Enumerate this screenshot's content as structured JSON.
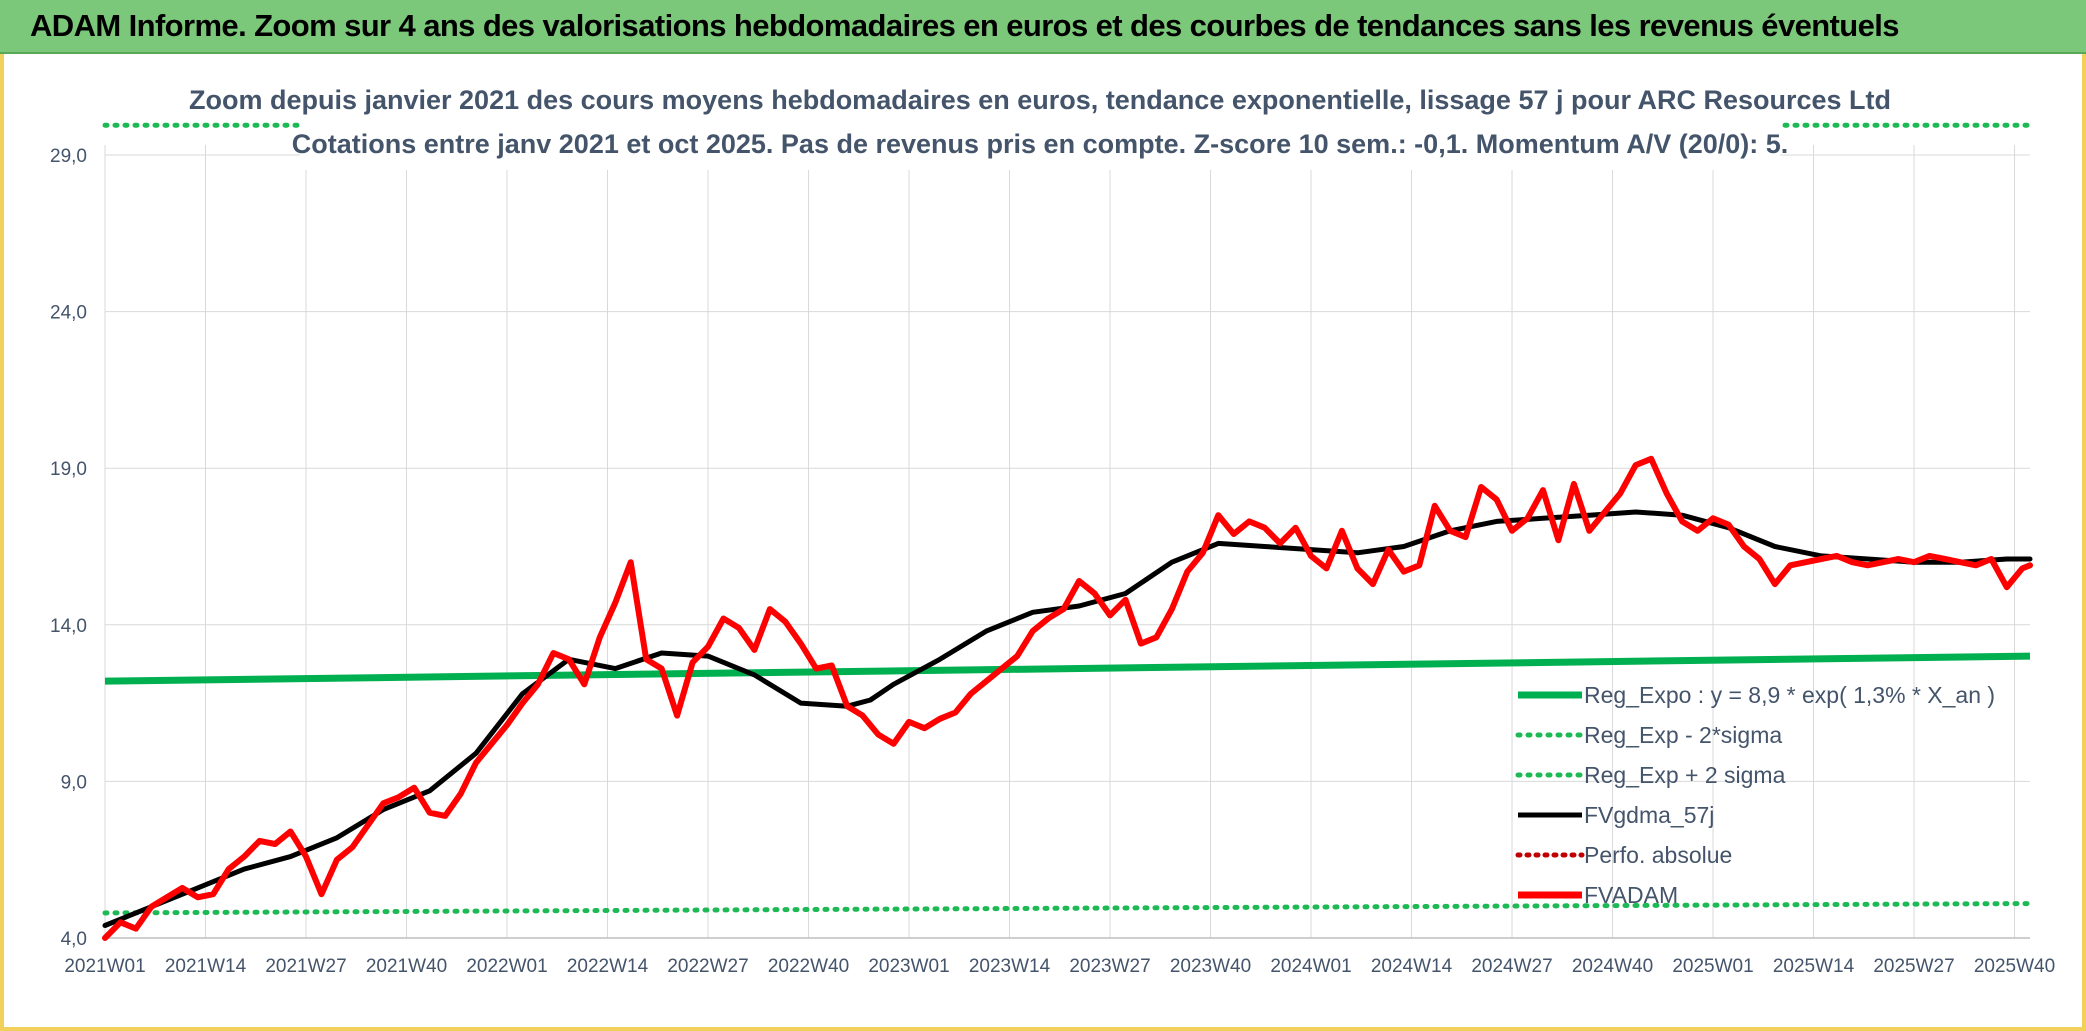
{
  "banner": {
    "title": "ADAM Informe. Zoom sur 4 ans des valorisations hebdomadaires en euros et des courbes de tendances sans les revenus éventuels"
  },
  "colors": {
    "banner_bg": "#7cc87a",
    "frame": "#f2d15a",
    "green": "#1db954",
    "trend": "#00b050",
    "red": "#ff0000",
    "black": "#000000",
    "dotted_red": "#c00000",
    "grid": "#d9d9d9",
    "text": "#44546a"
  },
  "chart_data": {
    "type": "line",
    "subtitle_lines": [
      "Zoom depuis janvier 2021 des cours moyens hebdomadaires en euros, tendance exponentielle, lissage 57 j pour ARC Resources Ltd",
      "Cotations entre janv 2021 et oct 2025. Pas de revenus pris en compte. Z-score 10 sem.: -0,1. Momentum A/V (20/0): 5."
    ],
    "ylim": [
      4.0,
      29.0
    ],
    "y_ticks": [
      "4,0",
      "9,0",
      "14,0",
      "19,0",
      "24,0",
      "29,0"
    ],
    "x_ticks": [
      "2021W01",
      "2021W14",
      "2021W27",
      "2021W40",
      "2022W01",
      "2022W14",
      "2022W27",
      "2022W40",
      "2023W01",
      "2023W14",
      "2023W27",
      "2023W40",
      "2024W01",
      "2024W14",
      "2024W27",
      "2024W40",
      "2025W01",
      "2025W14",
      "2025W27",
      "2025W40"
    ],
    "legend": [
      {
        "name": "Reg_Expo : y = 8,9 * exp( 1,3% *  X_an )",
        "style": "solid-green"
      },
      {
        "name": "Reg_Exp - 2*sigma",
        "style": "dotted-green"
      },
      {
        "name": "Reg_Exp + 2 sigma",
        "style": "dotted-green"
      },
      {
        "name": "FVgdma_57j",
        "style": "solid-black"
      },
      {
        "name": "Perfo. absolue",
        "style": "dotted-red"
      },
      {
        "name": "FVADAM",
        "style": "solid-red"
      }
    ],
    "series": {
      "reg_expo": {
        "start": 12.2,
        "end": 13.0
      },
      "reg_minus_2sigma": {
        "start": 4.8,
        "end": 5.1
      },
      "reg_plus_2sigma": {
        "start": 29.95,
        "end": 29.95
      },
      "fvgdma_57j": {
        "x": [
          0,
          6,
          12,
          18,
          24,
          30,
          36,
          39,
          42,
          48,
          54,
          60,
          66,
          72,
          78,
          84,
          90,
          96,
          99,
          102,
          108,
          114,
          120,
          126,
          132,
          138,
          144,
          150,
          156,
          162,
          168,
          174,
          180,
          186,
          192,
          198,
          204,
          210,
          216,
          222,
          228,
          234,
          240,
          246,
          249
        ],
        "values": [
          4.4,
          5.0,
          5.6,
          6.2,
          6.6,
          7.2,
          8.1,
          8.4,
          8.7,
          9.9,
          11.8,
          12.9,
          12.6,
          13.1,
          13.0,
          12.4,
          11.5,
          11.4,
          11.6,
          12.1,
          12.9,
          13.8,
          14.4,
          14.6,
          15.0,
          16.0,
          16.6,
          16.5,
          16.4,
          16.3,
          16.5,
          17.0,
          17.3,
          17.4,
          17.5,
          17.6,
          17.5,
          17.1,
          16.5,
          16.2,
          16.1,
          16.0,
          16.0,
          16.1,
          16.1
        ],
        "note_x": "index in weeks from 2021W01"
      },
      "fvadam": {
        "x": [
          0,
          2,
          4,
          6,
          8,
          10,
          12,
          14,
          16,
          18,
          20,
          22,
          24,
          26,
          28,
          30,
          32,
          34,
          36,
          38,
          40,
          42,
          44,
          46,
          48,
          50,
          52,
          54,
          56,
          58,
          60,
          62,
          64,
          66,
          68,
          70,
          72,
          74,
          76,
          78,
          80,
          82,
          84,
          86,
          88,
          90,
          92,
          94,
          96,
          98,
          100,
          102,
          104,
          106,
          108,
          110,
          112,
          114,
          116,
          118,
          120,
          122,
          124,
          126,
          128,
          130,
          132,
          134,
          136,
          138,
          140,
          142,
          144,
          146,
          148,
          150,
          152,
          154,
          156,
          158,
          160,
          162,
          164,
          166,
          168,
          170,
          172,
          174,
          176,
          178,
          180,
          182,
          184,
          186,
          188,
          190,
          192,
          194,
          196,
          198,
          200,
          202,
          204,
          206,
          208,
          210,
          212,
          214,
          216,
          218,
          220,
          222,
          224,
          226,
          228,
          230,
          232,
          234,
          236,
          238,
          240,
          242,
          244,
          246,
          248,
          249
        ],
        "values": [
          4.0,
          4.5,
          4.3,
          5.0,
          5.3,
          5.6,
          5.3,
          5.4,
          6.2,
          6.6,
          7.1,
          7.0,
          7.4,
          6.6,
          5.4,
          6.5,
          6.9,
          7.6,
          8.3,
          8.5,
          8.8,
          8.0,
          7.9,
          8.6,
          9.6,
          10.2,
          10.8,
          11.5,
          12.1,
          13.1,
          12.9,
          12.1,
          13.6,
          14.7,
          16.0,
          12.9,
          12.6,
          11.1,
          12.8,
          13.3,
          14.2,
          13.9,
          13.2,
          14.5,
          14.1,
          13.4,
          12.6,
          12.7,
          11.4,
          11.1,
          10.5,
          10.2,
          10.9,
          10.7,
          11.0,
          11.2,
          11.8,
          12.2,
          12.6,
          13.0,
          13.8,
          14.2,
          14.5,
          15.4,
          15.0,
          14.3,
          14.8,
          13.4,
          13.6,
          14.5,
          15.7,
          16.3,
          17.5,
          16.9,
          17.3,
          17.1,
          16.6,
          17.1,
          16.2,
          15.8,
          17.0,
          15.8,
          15.3,
          16.4,
          15.7,
          15.9,
          17.8,
          17.0,
          16.8,
          18.4,
          18.0,
          17.0,
          17.4,
          18.3,
          16.7,
          18.5,
          17.0,
          17.6,
          18.2,
          19.1,
          19.3,
          18.2,
          17.3,
          17.0,
          17.4,
          17.2,
          16.5,
          16.1,
          15.3,
          15.9,
          16.0,
          16.1,
          16.2,
          16.0,
          15.9,
          16.0,
          16.1,
          16.0,
          16.2,
          16.1,
          16.0,
          15.9,
          16.1,
          15.2,
          15.8,
          15.9
        ]
      }
    }
  }
}
